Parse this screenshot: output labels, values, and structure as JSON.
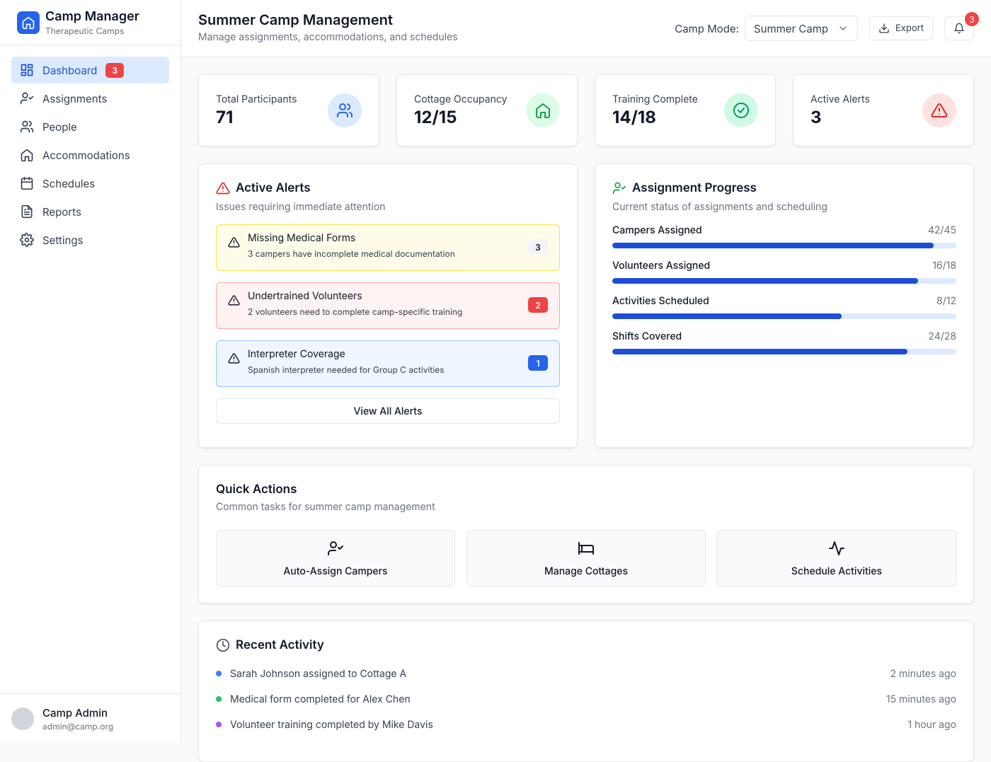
{
  "sidebar": {
    "brand": {
      "name": "Camp Manager",
      "subtitle": "Therapeutic Camps"
    },
    "nav": [
      {
        "label": "Dashboard",
        "badge": "3"
      },
      {
        "label": "Assignments"
      },
      {
        "label": "People"
      },
      {
        "label": "Accommodations"
      },
      {
        "label": "Schedules"
      },
      {
        "label": "Reports"
      },
      {
        "label": "Settings"
      }
    ],
    "user": {
      "name": "Camp Admin",
      "email": "admin@camp.org"
    }
  },
  "header": {
    "title": "Summer Camp Management",
    "subtitle": "Manage assignments, accommodations, and schedules",
    "camp_mode_label": "Camp Mode:",
    "camp_mode": "Summer Camp",
    "export": "Export",
    "notifications": "3"
  },
  "stats": [
    {
      "label": "Total Participants",
      "value": "71"
    },
    {
      "label": "Cottage Occupancy",
      "value": "12/15"
    },
    {
      "label": "Training Complete",
      "value": "14/18"
    },
    {
      "label": "Active Alerts",
      "value": "3"
    }
  ],
  "alerts": {
    "title": "Active Alerts",
    "subtitle": "Issues requiring immediate attention",
    "items": [
      {
        "title": "Missing Medical Forms",
        "description": "3 campers have incomplete medical documentation",
        "count": "3"
      },
      {
        "title": "Undertrained Volunteers",
        "description": "2 volunteers need to complete camp-specific training",
        "count": "2"
      },
      {
        "title": "Interpreter Coverage",
        "description": "Spanish interpreter needed for Group C activities",
        "count": "1"
      }
    ],
    "view_all": "View All Alerts"
  },
  "progress": {
    "title": "Assignment Progress",
    "subtitle": "Current status of assignments and scheduling",
    "items": [
      {
        "name": "Campers Assigned",
        "label": "42/45",
        "value": 42,
        "max": 45
      },
      {
        "name": "Volunteers Assigned",
        "label": "16/18",
        "value": 16,
        "max": 18
      },
      {
        "name": "Activities Scheduled",
        "label": "8/12",
        "value": 8,
        "max": 12
      },
      {
        "name": "Shifts Covered",
        "label": "24/28",
        "value": 24,
        "max": 28
      }
    ]
  },
  "quick_actions": {
    "title": "Quick Actions",
    "subtitle": "Common tasks for summer camp management",
    "actions": [
      "Auto-Assign Campers",
      "Manage Cottages",
      "Schedule Activities"
    ]
  },
  "activity": {
    "title": "Recent Activity",
    "items": [
      {
        "text": "Sarah Johnson assigned to Cottage A",
        "time": "2 minutes ago"
      },
      {
        "text": "Medical form completed for Alex Chen",
        "time": "15 minutes ago"
      },
      {
        "text": "Volunteer training completed by Mike Davis",
        "time": "1 hour ago"
      }
    ]
  }
}
